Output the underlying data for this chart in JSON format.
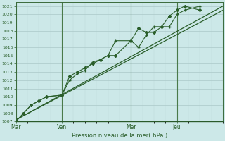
{
  "xlabel": "Pression niveau de la mer( hPa )",
  "ylim": [
    1007,
    1021.5
  ],
  "yticks": [
    1007,
    1008,
    1009,
    1010,
    1011,
    1012,
    1013,
    1014,
    1015,
    1016,
    1017,
    1018,
    1019,
    1020,
    1021
  ],
  "bg_color": "#cce8e8",
  "grid_color_major": "#aac8c8",
  "grid_color_minor": "#bdd8d8",
  "line_color": "#2a5e2a",
  "xtick_labels": [
    "Mar",
    "Ven",
    "Mer",
    "Jeu"
  ],
  "xtick_positions": [
    0,
    24,
    60,
    84
  ],
  "xlim": [
    0,
    108
  ],
  "vline_positions": [
    0,
    24,
    60,
    84
  ],
  "series1_x": [
    0,
    4,
    8,
    12,
    16,
    24,
    28,
    32,
    36,
    40,
    44,
    48,
    52,
    60,
    64,
    68,
    72,
    76,
    80,
    84,
    88,
    96
  ],
  "series1_y": [
    1007,
    1008,
    1009,
    1009.5,
    1010,
    1010.2,
    1012.5,
    1013.0,
    1013.5,
    1014.0,
    1014.5,
    1015.0,
    1015.0,
    1016.8,
    1018.3,
    1017.8,
    1017.8,
    1018.5,
    1019.8,
    1020.5,
    1021.0,
    1020.5
  ],
  "series2_x": [
    0,
    4,
    8,
    12,
    16,
    24,
    28,
    32,
    36,
    40,
    44,
    48,
    52,
    60,
    64,
    68,
    72,
    76,
    80,
    84,
    88,
    96
  ],
  "series2_y": [
    1007,
    1008,
    1009,
    1009.5,
    1010,
    1010.2,
    1012.0,
    1012.8,
    1013.2,
    1014.2,
    1014.5,
    1015.0,
    1016.8,
    1016.8,
    1016.0,
    1017.5,
    1018.5,
    1018.5,
    1018.5,
    1020.0,
    1020.5,
    1021.0
  ],
  "series3_x": [
    0,
    108
  ],
  "series3_y": [
    1007.2,
    1020.5
  ],
  "series4_x": [
    0,
    108
  ],
  "series4_y": [
    1007.2,
    1021.0
  ],
  "figsize": [
    3.2,
    2.0
  ],
  "dpi": 100
}
